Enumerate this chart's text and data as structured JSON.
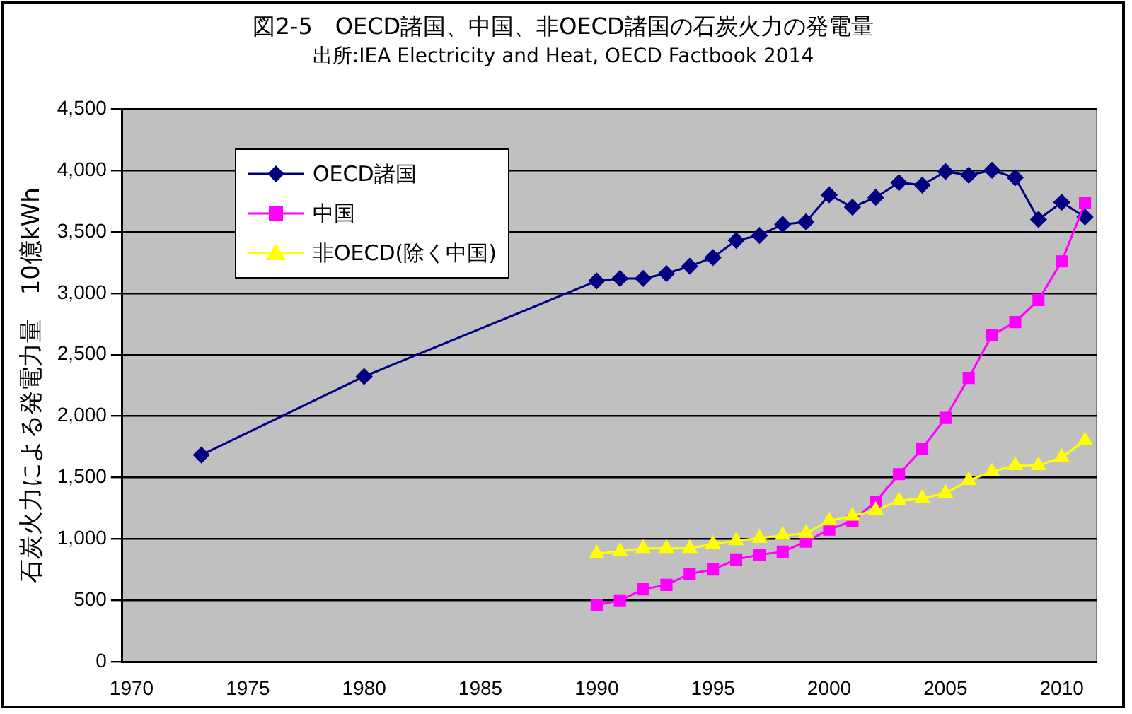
{
  "chart_data": {
    "type": "line",
    "title": "図2-5　OECD諸国、中国、非OECD諸国の石炭火力の発電量",
    "subtitle": "出所:IEA Electricity and Heat, OECD Factbook 2014",
    "ylabel": "石炭火力による発電力量　10億kWh",
    "xlim": [
      1969.6,
      2011.5
    ],
    "xticks": [
      1970,
      1975,
      1980,
      1985,
      1990,
      1995,
      2000,
      2005,
      2010
    ],
    "ylim": [
      0,
      4500
    ],
    "yticks": [
      {
        "value": 0,
        "label": "0"
      },
      {
        "value": 500,
        "label": "500"
      },
      {
        "value": 1000,
        "label": "1,000"
      },
      {
        "value": 1500,
        "label": "1,500"
      },
      {
        "value": 2000,
        "label": "2,000"
      },
      {
        "value": 2500,
        "label": "2,500"
      },
      {
        "value": 3000,
        "label": "3,000"
      },
      {
        "value": 3500,
        "label": "3,500"
      },
      {
        "value": 4000,
        "label": "4,000"
      },
      {
        "value": 4500,
        "label": "4,500"
      }
    ],
    "grid": "y",
    "legend": "top left",
    "line_style": "solid",
    "series": [
      {
        "name": "OECD諸国",
        "color": "#000080",
        "marker": "diamond",
        "x": [
          1973,
          1980,
          1990,
          1991,
          1992,
          1993,
          1994,
          1995,
          1996,
          1997,
          1998,
          1999,
          2000,
          2001,
          2002,
          2003,
          2004,
          2005,
          2006,
          2007,
          2008,
          2009,
          2010,
          2011
        ],
        "values": [
          1684,
          2323,
          3100,
          3120,
          3120,
          3160,
          3220,
          3290,
          3430,
          3470,
          3560,
          3580,
          3800,
          3700,
          3780,
          3900,
          3880,
          3990,
          3960,
          4000,
          3940,
          3600,
          3740,
          3620
        ]
      },
      {
        "name": "中国",
        "color": "#ff00ff",
        "marker": "square",
        "x": [
          1990,
          1991,
          1992,
          1993,
          1994,
          1995,
          1996,
          1997,
          1998,
          1999,
          2000,
          2001,
          2002,
          2003,
          2004,
          2005,
          2006,
          2007,
          2008,
          2009,
          2010,
          2011
        ],
        "values": [
          462,
          501,
          591,
          627,
          717,
          752,
          834,
          873,
          897,
          979,
          1077,
          1148,
          1304,
          1528,
          1735,
          1986,
          2311,
          2659,
          2765,
          2945,
          3259,
          3733
        ]
      },
      {
        "name": "非OECD(除く中国)",
        "color": "#ffff00",
        "marker": "triangle",
        "x": [
          1990,
          1991,
          1992,
          1993,
          1994,
          1995,
          1996,
          1997,
          1998,
          1999,
          2000,
          2001,
          2002,
          2003,
          2004,
          2005,
          2006,
          2007,
          2008,
          2009,
          2010,
          2011
        ],
        "values": [
          881,
          901,
          924,
          924,
          924,
          960,
          987,
          1007,
          1030,
          1046,
          1148,
          1187,
          1234,
          1312,
          1332,
          1371,
          1477,
          1548,
          1598,
          1598,
          1665,
          1801
        ]
      }
    ]
  }
}
